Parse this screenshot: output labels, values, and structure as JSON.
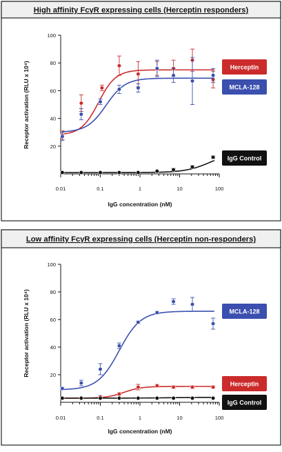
{
  "chart_data": [
    {
      "type": "scatter",
      "title": "High affinity FcγR expressing cells (Herceptin responders)",
      "xlabel": "IgG concentration (nM)",
      "ylabel": "Receptor activation (RLU x 10⁴)",
      "xscale": "log",
      "xlim": [
        0.01,
        100
      ],
      "ylim": [
        0,
        100
      ],
      "xticks": [
        0.01,
        0.1,
        1,
        10,
        100
      ],
      "xtick_labels": [
        "0.01",
        "0.1",
        "1",
        "10",
        "100"
      ],
      "yticks": [
        20,
        40,
        60,
        80,
        100
      ],
      "ytick_labels": [
        "20",
        "40",
        "60",
        "80",
        "100"
      ],
      "grid": false,
      "legend": "right, labels beside curves",
      "series": [
        {
          "name": "Herceptin",
          "color": "#cc2b2b",
          "x": [
            0.011,
            0.033,
            0.11,
            0.3,
            0.9,
            2.7,
            7,
            21,
            70
          ],
          "y": [
            28,
            51,
            62,
            78,
            72,
            76,
            76,
            82,
            68
          ],
          "err": [
            3,
            6,
            2,
            7,
            9,
            5,
            6,
            8,
            6
          ],
          "fit": {
            "bottom": 28,
            "top": 75,
            "ec50": 0.09,
            "hill": 2.0
          }
        },
        {
          "name": "MCLA-128",
          "color": "#3a4fae",
          "x": [
            0.011,
            0.033,
            0.1,
            0.3,
            0.9,
            2.7,
            7,
            21,
            70
          ],
          "y": [
            27,
            43,
            52,
            61,
            62,
            76,
            71,
            67,
            71
          ],
          "err": [
            3,
            4,
            2,
            3,
            3,
            6,
            5,
            17,
            5
          ],
          "fit": {
            "bottom": 30,
            "top": 69,
            "ec50": 0.14,
            "hill": 1.8
          }
        },
        {
          "name": "IgG Control",
          "color": "#111111",
          "x": [
            0.011,
            0.033,
            0.1,
            0.3,
            0.9,
            2.7,
            7,
            21,
            70
          ],
          "y": [
            1,
            1,
            1,
            1,
            1,
            2,
            3,
            5,
            12
          ],
          "err": [
            0,
            0,
            0,
            0,
            0,
            0,
            1,
            1,
            1
          ],
          "fit": {
            "bottom": 1,
            "top": 16,
            "ec50": 60,
            "hill": 1.4
          }
        }
      ]
    },
    {
      "type": "scatter",
      "title": "Low affinity FcγR expressing cells (Herceptin non-responders)",
      "xlabel": "IgG concentration (nM)",
      "ylabel": "Receptor activation (RLU x 10⁴)",
      "xscale": "log",
      "xlim": [
        0.01,
        100
      ],
      "ylim": [
        0,
        100
      ],
      "xticks": [
        0.01,
        0.1,
        1,
        10,
        100
      ],
      "xtick_labels": [
        "0.01",
        "0.1",
        "1",
        "10",
        "100"
      ],
      "yticks": [
        20,
        40,
        60,
        80,
        100
      ],
      "ytick_labels": [
        "20",
        "40",
        "60",
        "80",
        "100"
      ],
      "grid": false,
      "legend": "right, labels beside curves",
      "series": [
        {
          "name": "MCLA-128",
          "color": "#3a4fae",
          "x": [
            0.011,
            0.033,
            0.1,
            0.3,
            0.9,
            2.7,
            7,
            21,
            70
          ],
          "y": [
            10,
            14,
            24,
            41,
            58,
            65,
            73,
            71,
            57
          ],
          "err": [
            1,
            2,
            4,
            2,
            1,
            1,
            2,
            5,
            4
          ],
          "fit": {
            "bottom": 9,
            "top": 66,
            "ec50": 0.3,
            "hill": 1.6
          }
        },
        {
          "name": "Herceptin",
          "color": "#cc2b2b",
          "x": [
            0.011,
            0.033,
            0.1,
            0.3,
            0.9,
            2.7,
            7,
            21,
            70
          ],
          "y": [
            3,
            3,
            4,
            6,
            11,
            12,
            11,
            11,
            11
          ],
          "err": [
            0,
            0,
            1,
            1,
            2,
            1,
            1,
            1,
            1
          ],
          "fit": {
            "bottom": 3,
            "top": 11.5,
            "ec50": 0.4,
            "hill": 2.0
          }
        },
        {
          "name": "IgG Control",
          "color": "#111111",
          "x": [
            0.011,
            0.033,
            0.1,
            0.3,
            0.9,
            2.7,
            7,
            21,
            70
          ],
          "y": [
            3,
            3,
            3,
            3,
            3,
            3,
            3,
            3,
            3
          ],
          "err": [
            0,
            0,
            0,
            0,
            0,
            0,
            0,
            0,
            0
          ],
          "fit": {
            "bottom": 3,
            "top": 3.6,
            "ec50": 5,
            "hill": 1.0
          }
        }
      ]
    }
  ]
}
